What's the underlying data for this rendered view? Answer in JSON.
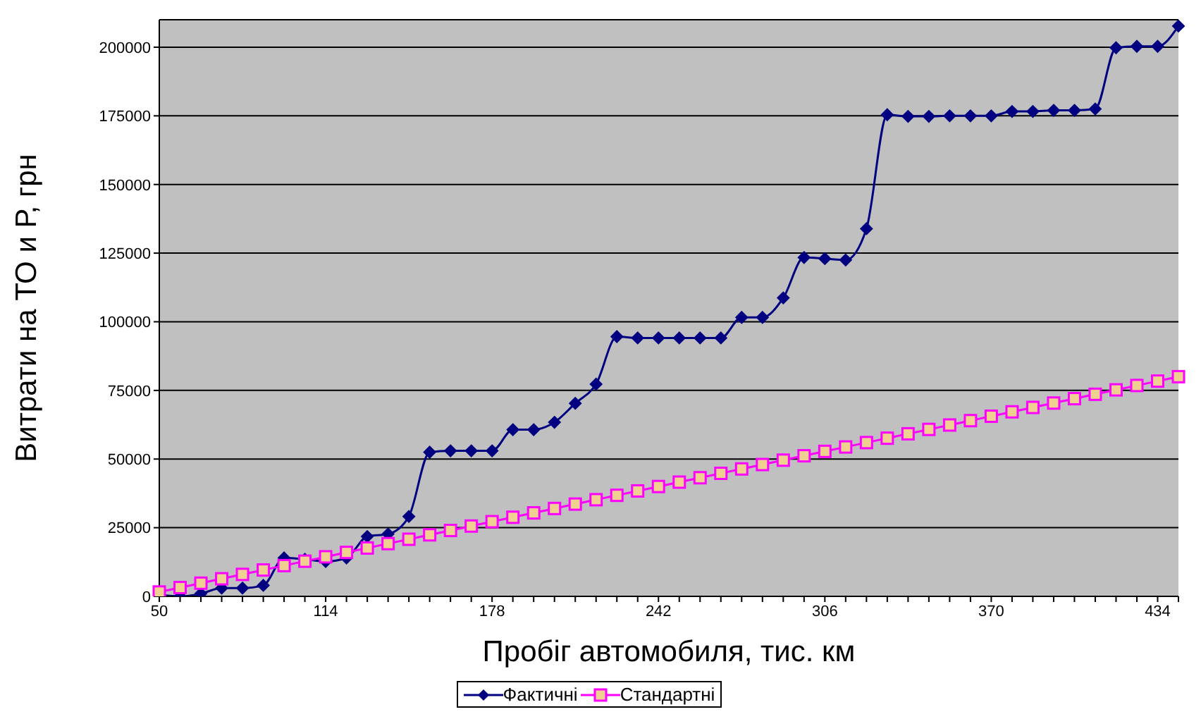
{
  "chart_data": {
    "type": "line",
    "xlabel": "Пробіг автомобиля, тис. км",
    "ylabel": "Витрати  на ТО и Р, грн",
    "categories": [
      "50",
      null,
      null,
      null,
      null,
      null,
      null,
      null,
      "114",
      null,
      null,
      null,
      null,
      null,
      null,
      null,
      "178",
      null,
      null,
      null,
      null,
      null,
      null,
      null,
      "242",
      null,
      null,
      null,
      null,
      null,
      null,
      null,
      "306",
      null,
      null,
      null,
      null,
      null,
      null,
      null,
      "370",
      null,
      null,
      null,
      null,
      null,
      null,
      null,
      "434",
      null
    ],
    "series": [
      {
        "name": "Фактичні",
        "color": "#000080",
        "marker": "diamond",
        "values": [
          500,
          0,
          1000,
          3000,
          3000,
          4000,
          14000,
          13500,
          12700,
          14000,
          21800,
          22700,
          29100,
          52500,
          53000,
          53000,
          53000,
          60700,
          60700,
          63400,
          70300,
          77300,
          94600,
          94100,
          94100,
          94100,
          94100,
          94100,
          101600,
          101600,
          108700,
          123400,
          123000,
          122500,
          133900,
          175400,
          174800,
          174800,
          175000,
          175000,
          175000,
          176600,
          176600,
          177000,
          177000,
          177500,
          199800,
          200300,
          200300,
          207700
        ]
      },
      {
        "name": "Стандартні",
        "color": "#ff00ff",
        "marker": "square",
        "values": [
          1600,
          3200,
          4800,
          6400,
          8000,
          9600,
          11200,
          12800,
          14400,
          16000,
          17600,
          19200,
          20800,
          22400,
          24000,
          25600,
          27200,
          28800,
          30400,
          32000,
          33600,
          35200,
          36800,
          38400,
          40000,
          41600,
          43200,
          44800,
          46400,
          48000,
          49600,
          51200,
          52800,
          54400,
          56000,
          57600,
          59200,
          60800,
          62400,
          64000,
          65600,
          67200,
          68800,
          70400,
          72000,
          73600,
          75200,
          76800,
          78400,
          80000
        ]
      }
    ],
    "ylim": [
      0,
      210000
    ],
    "yticks": [
      0,
      25000,
      50000,
      75000,
      100000,
      125000,
      150000,
      175000,
      200000
    ],
    "grid": "y",
    "legend": "bottom",
    "line_style": "solid"
  }
}
